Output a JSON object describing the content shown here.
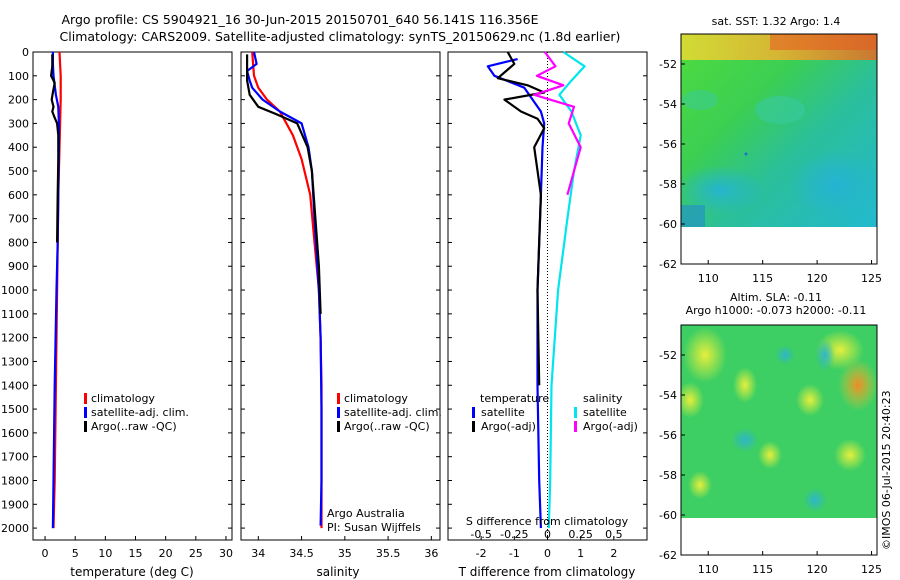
{
  "header": {
    "title1": "Argo profile: CS 5904921_16 30-Jun-2015 20150701_640 56.141S 116.356E",
    "title2": "Climatology: CARS2009. Satellite-adjusted climatology: synTS_20150629.nc (1.8d earlier)"
  },
  "footer": {
    "credit_line1": "Argo Australia",
    "credit_line2": "PI: Susan Wijffels",
    "stamp": "©IMOS 06-Jul-2015 20:40:23"
  },
  "colors": {
    "climatology": "#ff0000",
    "satellite": "#0000ff",
    "argo": "#000000",
    "sal_satellite": "#00e5ee",
    "sal_argo": "#ff00ff"
  },
  "chart_data": [
    {
      "type": "line",
      "title": "",
      "xlabel": "temperature (deg C)",
      "ylabel": "",
      "xlim": [
        -2,
        31
      ],
      "ylim": [
        2050,
        0
      ],
      "xticks": [
        0,
        5,
        10,
        15,
        20,
        25,
        30
      ],
      "yticks": [
        0,
        100,
        200,
        300,
        400,
        500,
        600,
        700,
        800,
        900,
        1000,
        1100,
        1200,
        1300,
        1400,
        1500,
        1600,
        1700,
        1800,
        1900,
        2000
      ],
      "legend": [
        "climatology",
        "satellite-adj. clim.",
        "Argo(..raw -QC)"
      ],
      "series": [
        {
          "name": "climatology",
          "color": "#ff0000",
          "x": [
            2.4,
            2.5,
            2.6,
            2.6,
            2.5,
            2.4,
            2.2,
            2.1,
            2.0,
            1.8,
            1.6,
            1.4
          ],
          "y": [
            0,
            50,
            100,
            200,
            300,
            400,
            600,
            800,
            1000,
            1400,
            1800,
            2000
          ]
        },
        {
          "name": "satellite-adj. clim.",
          "color": "#0000ff",
          "x": [
            1.3,
            1.3,
            1.4,
            1.8,
            2.2,
            2.3,
            2.3,
            2.2,
            2.1,
            1.9,
            1.6,
            1.4,
            1.3
          ],
          "y": [
            0,
            50,
            100,
            180,
            230,
            300,
            400,
            600,
            800,
            1000,
            1400,
            1800,
            2000
          ]
        },
        {
          "name": "Argo(..raw -QC)",
          "color": "#000000",
          "x": [
            1.2,
            1.2,
            1.0,
            1.6,
            1.3,
            1.1,
            1.4,
            1.2,
            1.5,
            2.0,
            2.2,
            2.2,
            2.1,
            2.0
          ],
          "y": [
            10,
            60,
            100,
            130,
            170,
            200,
            230,
            250,
            270,
            300,
            350,
            450,
            600,
            800
          ]
        }
      ]
    },
    {
      "type": "line",
      "title": "",
      "xlabel": "salinity",
      "ylabel": "",
      "xlim": [
        33.8,
        36.1
      ],
      "ylim": [
        2050,
        0
      ],
      "xticks": [
        34,
        34.5,
        35,
        35.5,
        36
      ],
      "xticklabels": [
        "34",
        "34.5",
        "35",
        "35.5",
        "36"
      ],
      "legend": [
        "climatology",
        "satellite-adj. clim.",
        "Argo(..raw -QC)"
      ],
      "series": [
        {
          "name": "climatology",
          "color": "#ff0000",
          "x": [
            33.93,
            33.95,
            34.0,
            34.1,
            34.25,
            34.4,
            34.5,
            34.6,
            34.65,
            34.7,
            34.72,
            34.73,
            34.73,
            34.73
          ],
          "y": [
            0,
            100,
            150,
            200,
            250,
            350,
            450,
            600,
            800,
            1000,
            1200,
            1400,
            1800,
            2000
          ]
        },
        {
          "name": "satellite-adj. clim.",
          "color": "#0000ff",
          "x": [
            33.95,
            33.98,
            33.87,
            33.9,
            33.93,
            34.05,
            34.25,
            34.5,
            34.58,
            34.62,
            34.65,
            34.7,
            34.72,
            34.73,
            34.73,
            34.72
          ],
          "y": [
            0,
            50,
            80,
            120,
            150,
            200,
            250,
            300,
            400,
            500,
            700,
            1000,
            1200,
            1500,
            1800,
            1990
          ]
        },
        {
          "name": "Argo(..raw -QC)",
          "color": "#000000",
          "x": [
            33.87,
            33.87,
            33.9,
            34.0,
            34.2,
            34.45,
            34.57,
            34.62,
            34.66,
            34.7,
            34.72
          ],
          "y": [
            10,
            120,
            180,
            230,
            260,
            300,
            400,
            500,
            700,
            900,
            1100
          ]
        }
      ]
    },
    {
      "type": "line",
      "title": "",
      "xlabel": "T difference from climatology",
      "xlabel2": "S difference from climatology",
      "ylabel": "",
      "xlim": [
        -3,
        3
      ],
      "ylim": [
        2050,
        0
      ],
      "xticks": [
        -2,
        -1,
        0,
        1,
        2
      ],
      "xticklabels": [
        "-2",
        "-1",
        "0",
        "1",
        "2"
      ],
      "xticks2": [
        -0.5,
        -0.25,
        0,
        0.25,
        0.5
      ],
      "xticklabels2": [
        "-0.5",
        "-0.25",
        "0",
        "0.25",
        "0.5"
      ],
      "legend_temperature_title": "temperature",
      "legend_salinity_title": "salinity",
      "legend": [
        "satellite",
        "Argo(-adj)",
        "satellite",
        "Argo(-adj)"
      ],
      "series": [
        {
          "name": "T satellite",
          "color": "#0000ff",
          "x": [
            -0.9,
            -1.8,
            -1.6,
            -0.7,
            -0.2,
            -0.1,
            -0.15,
            -0.2,
            -0.3,
            -0.3,
            -0.25,
            -0.2
          ],
          "y": [
            30,
            60,
            100,
            150,
            250,
            300,
            400,
            600,
            1000,
            1400,
            1800,
            2000
          ]
        },
        {
          "name": "T Argo(-adj)",
          "color": "#000000",
          "x": [
            -1.2,
            -1.0,
            -1.5,
            -0.6,
            -0.1,
            -1.3,
            -0.8,
            -0.3,
            -0.1,
            -0.4,
            -0.2,
            -0.3,
            -0.25
          ],
          "y": [
            0,
            50,
            110,
            140,
            170,
            200,
            250,
            280,
            320,
            400,
            600,
            1000,
            1400
          ]
        },
        {
          "name": "S satellite",
          "color": "#00e5ee",
          "x": [
            0.12,
            0.28,
            0.18,
            0.09,
            0.18,
            0.25,
            0.2,
            0.15,
            0.08,
            0.03,
            0.02,
            0.01
          ],
          "y": [
            0,
            60,
            120,
            180,
            250,
            350,
            500,
            700,
            1000,
            1400,
            1800,
            2000
          ]
        },
        {
          "name": "S Argo(-adj)",
          "color": "#ff00ff",
          "x": [
            -0.02,
            0.06,
            -0.08,
            0.12,
            -0.1,
            0.2,
            0.16,
            0.25,
            0.2,
            0.15
          ],
          "y": [
            0,
            60,
            100,
            140,
            180,
            230,
            300,
            400,
            500,
            600
          ]
        }
      ]
    },
    {
      "type": "heatmap",
      "title": "sat. SST: 1.32 Argo: 1.4",
      "xlim": [
        107.5,
        125.5
      ],
      "ylim": [
        -62,
        -50.5
      ],
      "xticks": [
        110,
        115,
        120,
        125
      ],
      "yticks": [
        -52,
        -54,
        -56,
        -58,
        -60,
        -62
      ],
      "yticklabels": [
        "-52",
        "-54",
        "-56",
        "-58",
        "-60",
        "-62"
      ]
    },
    {
      "type": "heatmap",
      "title": "Altim. SLA: -0.11",
      "subtitle": "Argo h1000: -0.073 h2000: -0.11",
      "xlim": [
        107.5,
        125.5
      ],
      "ylim": [
        -62,
        -50.5
      ],
      "xticks": [
        110,
        115,
        120,
        125
      ],
      "yticks": [
        -52,
        -54,
        -56,
        -58,
        -60,
        -62
      ],
      "yticklabels": [
        "-52",
        "-54",
        "-56",
        "-58",
        "-60",
        "-62"
      ]
    }
  ]
}
